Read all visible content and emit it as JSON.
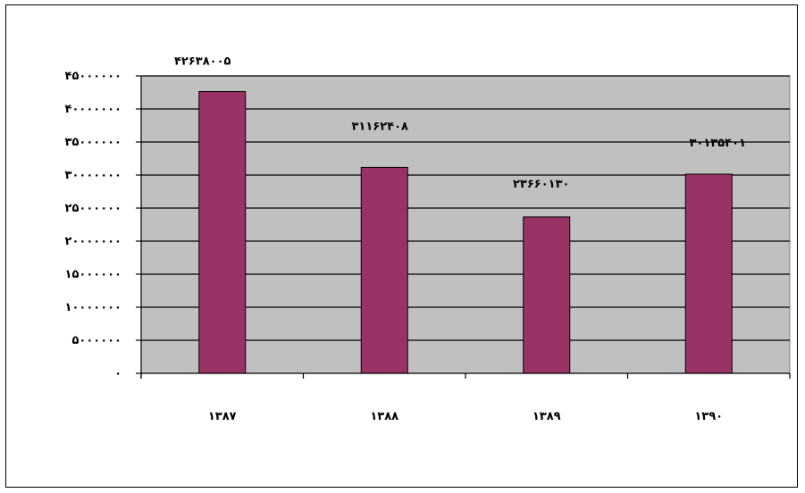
{
  "chart_data": {
    "type": "bar",
    "title": "",
    "xlabel": "",
    "ylabel": "",
    "categories": [
      "۱۳۸۷",
      "۱۳۸۸",
      "۱۳۸۹",
      "۱۳۹۰"
    ],
    "values": [
      42638005,
      31162408,
      23660130,
      30135401
    ],
    "value_labels": [
      "۴۲۶۳۸۰۰۵",
      "۳۱۱۶۲۴۰۸",
      "۲۳۶۶۰۱۳۰",
      "۳۰۱۳۵۴۰۱"
    ],
    "ylim": [
      0,
      45000000
    ],
    "ytick_values": [
      0,
      5000000,
      10000000,
      15000000,
      20000000,
      25000000,
      30000000,
      35000000,
      40000000,
      45000000
    ],
    "ytick_labels": [
      "۰",
      "۵۰۰۰۰۰۰",
      "۱۰۰۰۰۰۰۰",
      "۱۵۰۰۰۰۰۰",
      "۲۰۰۰۰۰۰۰",
      "۲۵۰۰۰۰۰۰",
      "۳۰۰۰۰۰۰۰",
      "۳۵۰۰۰۰۰۰",
      "۴۰۰۰۰۰۰۰",
      "۴۵۰۰۰۰۰۰"
    ],
    "grid": true,
    "legend": "none",
    "colors": {
      "bar": "#993366",
      "plot_background": "#c0c0c0",
      "gridline": "#000000"
    }
  }
}
